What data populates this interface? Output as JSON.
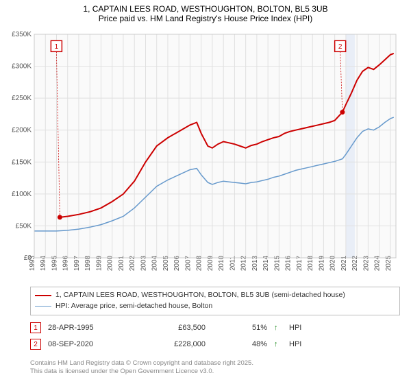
{
  "title": {
    "line1": "1, CAPTAIN LEES ROAD, WESTHOUGHTON, BOLTON, BL5 3UB",
    "line2": "Price paid vs. HM Land Registry's House Price Index (HPI)"
  },
  "chart": {
    "type": "line",
    "background_color": "#fafafa",
    "grid_color": "#e0e0e0",
    "border_color": "#cccccc",
    "xlim": [
      1993,
      2025.5
    ],
    "ylim": [
      0,
      350000
    ],
    "yticks": [
      0,
      50000,
      100000,
      150000,
      200000,
      250000,
      300000,
      350000
    ],
    "ytick_labels": [
      "£0",
      "£50K",
      "£100K",
      "£150K",
      "£200K",
      "£250K",
      "£300K",
      "£350K"
    ],
    "xticks": [
      1993,
      1994,
      1995,
      1996,
      1997,
      1998,
      1999,
      2000,
      2001,
      2002,
      2003,
      2004,
      2005,
      2006,
      2007,
      2008,
      2009,
      2010,
      2011,
      2012,
      2013,
      2014,
      2015,
      2016,
      2017,
      2018,
      2019,
      2020,
      2021,
      2022,
      2023,
      2024,
      2025
    ],
    "band": {
      "from": 2021.0,
      "to": 2021.8,
      "color": "#c8d8f0",
      "opacity": 0.35
    },
    "series": [
      {
        "name": "price_paid",
        "label": "1, CAPTAIN LEES ROAD, WESTHOUGHTON, BOLTON, BL5 3UB (semi-detached house)",
        "color": "#cc0000",
        "line_width": 2,
        "points": [
          [
            1995.3,
            63500
          ],
          [
            1996,
            65000
          ],
          [
            1997,
            68000
          ],
          [
            1998,
            72000
          ],
          [
            1999,
            78000
          ],
          [
            2000,
            88000
          ],
          [
            2001,
            100000
          ],
          [
            2002,
            120000
          ],
          [
            2003,
            150000
          ],
          [
            2004,
            175000
          ],
          [
            2005,
            188000
          ],
          [
            2006,
            198000
          ],
          [
            2007,
            208000
          ],
          [
            2007.6,
            212000
          ],
          [
            2008,
            195000
          ],
          [
            2008.6,
            175000
          ],
          [
            2009,
            172000
          ],
          [
            2009.5,
            178000
          ],
          [
            2010,
            182000
          ],
          [
            2010.5,
            180000
          ],
          [
            2011,
            178000
          ],
          [
            2011.5,
            175000
          ],
          [
            2012,
            172000
          ],
          [
            2012.5,
            176000
          ],
          [
            2013,
            178000
          ],
          [
            2013.5,
            182000
          ],
          [
            2014,
            185000
          ],
          [
            2014.5,
            188000
          ],
          [
            2015,
            190000
          ],
          [
            2015.5,
            195000
          ],
          [
            2016,
            198000
          ],
          [
            2016.5,
            200000
          ],
          [
            2017,
            202000
          ],
          [
            2017.5,
            204000
          ],
          [
            2018,
            206000
          ],
          [
            2018.5,
            208000
          ],
          [
            2019,
            210000
          ],
          [
            2019.5,
            212000
          ],
          [
            2020,
            215000
          ],
          [
            2020.69,
            228000
          ],
          [
            2021,
            240000
          ],
          [
            2021.5,
            258000
          ],
          [
            2022,
            278000
          ],
          [
            2022.5,
            292000
          ],
          [
            2023,
            298000
          ],
          [
            2023.5,
            295000
          ],
          [
            2024,
            302000
          ],
          [
            2024.5,
            310000
          ],
          [
            2025,
            318000
          ],
          [
            2025.3,
            320000
          ]
        ]
      },
      {
        "name": "hpi",
        "label": "HPI: Average price, semi-detached house, Bolton",
        "color": "#6699cc",
        "line_width": 1.5,
        "points": [
          [
            1993,
            42000
          ],
          [
            1994,
            42000
          ],
          [
            1995,
            42000
          ],
          [
            1996,
            43000
          ],
          [
            1997,
            45000
          ],
          [
            1998,
            48000
          ],
          [
            1999,
            52000
          ],
          [
            2000,
            58000
          ],
          [
            2001,
            65000
          ],
          [
            2002,
            78000
          ],
          [
            2003,
            95000
          ],
          [
            2004,
            112000
          ],
          [
            2005,
            122000
          ],
          [
            2006,
            130000
          ],
          [
            2007,
            138000
          ],
          [
            2007.6,
            140000
          ],
          [
            2008,
            130000
          ],
          [
            2008.6,
            118000
          ],
          [
            2009,
            115000
          ],
          [
            2009.5,
            118000
          ],
          [
            2010,
            120000
          ],
          [
            2010.5,
            119000
          ],
          [
            2011,
            118000
          ],
          [
            2011.5,
            117000
          ],
          [
            2012,
            116000
          ],
          [
            2012.5,
            118000
          ],
          [
            2013,
            119000
          ],
          [
            2013.5,
            121000
          ],
          [
            2014,
            123000
          ],
          [
            2014.5,
            126000
          ],
          [
            2015,
            128000
          ],
          [
            2015.5,
            131000
          ],
          [
            2016,
            134000
          ],
          [
            2016.5,
            137000
          ],
          [
            2017,
            139000
          ],
          [
            2017.5,
            141000
          ],
          [
            2018,
            143000
          ],
          [
            2018.5,
            145000
          ],
          [
            2019,
            147000
          ],
          [
            2019.5,
            149000
          ],
          [
            2020,
            151000
          ],
          [
            2020.7,
            155000
          ],
          [
            2021,
            162000
          ],
          [
            2021.5,
            175000
          ],
          [
            2022,
            188000
          ],
          [
            2022.5,
            198000
          ],
          [
            2023,
            202000
          ],
          [
            2023.5,
            200000
          ],
          [
            2024,
            205000
          ],
          [
            2024.5,
            212000
          ],
          [
            2025,
            218000
          ],
          [
            2025.3,
            220000
          ]
        ]
      }
    ],
    "markers": [
      {
        "id": "1",
        "x": 1995.3,
        "y": 63500,
        "box_x": 1994.5,
        "box_y": 340000
      },
      {
        "id": "2",
        "x": 2020.69,
        "y": 228000,
        "box_x": 2020.0,
        "box_y": 340000
      }
    ]
  },
  "legend": {
    "items": [
      {
        "color": "#cc0000",
        "width": 2,
        "label_key": "chart.series.0.label"
      },
      {
        "color": "#6699cc",
        "width": 1.5,
        "label_key": "chart.series.1.label"
      }
    ]
  },
  "sales": [
    {
      "marker": "1",
      "date": "28-APR-1995",
      "price": "£63,500",
      "pct": "51%",
      "arrow": "↑",
      "suffix": "HPI"
    },
    {
      "marker": "2",
      "date": "08-SEP-2020",
      "price": "£228,000",
      "pct": "48%",
      "arrow": "↑",
      "suffix": "HPI"
    }
  ],
  "credits": {
    "line1": "Contains HM Land Registry data © Crown copyright and database right 2025.",
    "line2": "This data is licensed under the Open Government Licence v3.0."
  },
  "style": {
    "title_fontsize": 12,
    "axis_label_fontsize": 10,
    "legend_fontsize": 10.5,
    "sales_fontsize": 11,
    "credits_fontsize": 9.5,
    "marker_box_size": 16,
    "arrow_color": "#228b22"
  }
}
